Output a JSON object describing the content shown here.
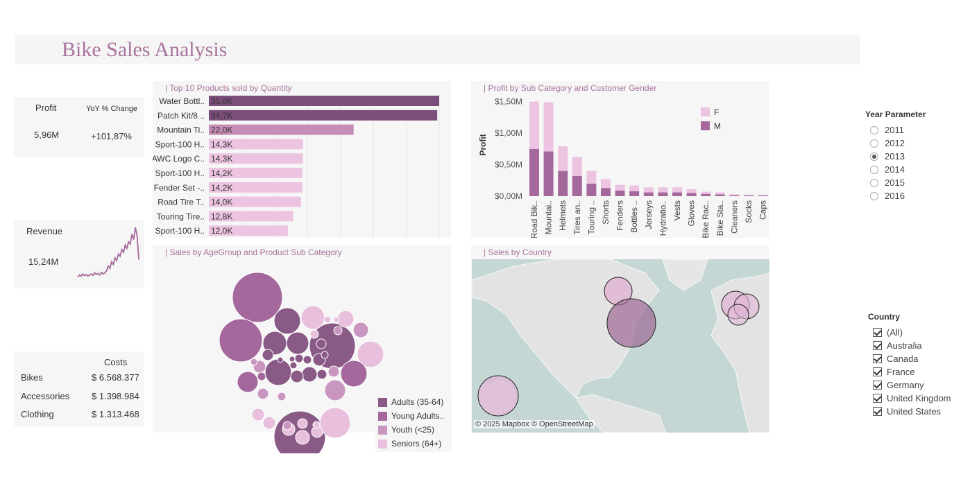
{
  "header": {
    "title": "Bike Sales Analysis"
  },
  "kpis": {
    "profit_label": "Profit",
    "profit_value": "5,96M",
    "yoy_label": "YoY % Change",
    "yoy_value": "+101,87%",
    "revenue_label": "Revenue",
    "revenue_value": "15,24M",
    "revenue_sparkline": [
      0.1,
      0.14,
      0.12,
      0.16,
      0.13,
      0.15,
      0.12,
      0.14,
      0.16,
      0.13,
      0.18,
      0.15,
      0.17,
      0.14,
      0.19,
      0.16,
      0.18,
      0.22,
      0.3,
      0.26,
      0.38,
      0.33,
      0.45,
      0.4,
      0.52,
      0.48,
      0.6,
      0.55,
      0.68,
      0.62,
      0.74,
      0.7,
      0.88,
      0.78,
      1.0,
      0.85,
      0.42
    ]
  },
  "costs": {
    "header": "Costs",
    "rows": [
      {
        "label": "Bikes",
        "value": "$ 6.568.377"
      },
      {
        "label": "Accessories",
        "value": "$ 1.398.984"
      },
      {
        "label": "Clothing",
        "value": "$ 1.313.468"
      }
    ]
  },
  "chart_data": [
    {
      "type": "bar",
      "title": "| Top 10 Products sold by Quantity",
      "categories": [
        "Water Bottl..",
        "Patch Kit/8 ..",
        "Mountain Ti..",
        "Sport-100 H..",
        "AWC Logo C..",
        "Sport-100 H..",
        "Fender Set -..",
        "Road Tire T..",
        "Touring Tire..",
        "Sport-100 H.."
      ],
      "values": [
        35.0,
        34.7,
        22.0,
        14.3,
        14.3,
        14.2,
        14.2,
        14.0,
        12.8,
        12.0
      ],
      "value_labels": [
        "35,0K",
        "34,7K",
        "22,0K",
        "14,3K",
        "14,3K",
        "14,2K",
        "14,2K",
        "14,0K",
        "12,8K",
        "12,0K"
      ],
      "xlim": [
        0,
        35
      ],
      "colors": [
        "#7b4d7b",
        "#7b4d7b",
        "#c68bb6",
        "#ecc3e0",
        "#ecc3e0",
        "#ecc3e0",
        "#ecc3e0",
        "#ecc3e0",
        "#ecc3e0",
        "#ecc3e0"
      ]
    },
    {
      "type": "bar",
      "title": "| Profit by Sub Category and Customer Gender",
      "ylabel": "Profit",
      "categories": [
        "Road Bik..",
        "Mountai..",
        "Helmets",
        "Tires an..",
        "Touring ..",
        "Shorts",
        "Fenders",
        "Bottles ..",
        "Jerseys",
        "Hydratio..",
        "Vests",
        "Gloves",
        "Bike Rac..",
        "Bike Sta..",
        "Cleaners",
        "Socks",
        "Caps"
      ],
      "series": [
        {
          "name": "M",
          "color": "#a4689c",
          "values": [
            0.75,
            0.71,
            0.4,
            0.32,
            0.2,
            0.13,
            0.09,
            0.08,
            0.06,
            0.06,
            0.06,
            0.05,
            0.035,
            0.03,
            0.015,
            0.012,
            0.012
          ]
        },
        {
          "name": "F",
          "color": "#ecc3e0",
          "values": [
            0.75,
            0.78,
            0.39,
            0.3,
            0.2,
            0.14,
            0.09,
            0.09,
            0.08,
            0.08,
            0.08,
            0.06,
            0.035,
            0.03,
            0.015,
            0.012,
            0.012
          ]
        }
      ],
      "yticks": [
        "$0,00M",
        "$0,50M",
        "$1,00M",
        "$1,50M"
      ],
      "ylim": [
        0,
        1.55
      ],
      "legend": [
        "F",
        "M"
      ],
      "legend_position": "top-right"
    },
    {
      "type": "scatter",
      "title": "| Sales by AgeGroup and Product Sub Category",
      "legend": [
        {
          "name": "Adults (35-64)",
          "color": "#8a5a87"
        },
        {
          "name": "Young Adults..",
          "color": "#a4689c"
        },
        {
          "name": "Youth (<25)",
          "color": "#c896be"
        },
        {
          "name": "Seniors (64+)",
          "color": "#e8bfdc"
        }
      ],
      "legend_position": "bottom-right"
    }
  ],
  "map": {
    "title": "| Sales by Country",
    "attribution": "© 2025 Mapbox © OpenStreetMap"
  },
  "year_parameter": {
    "title": "Year Parameter",
    "options": [
      "2011",
      "2012",
      "2013",
      "2014",
      "2015",
      "2016"
    ],
    "selected": "2013"
  },
  "country_filter": {
    "title": "Country",
    "options": [
      "(All)",
      "Australia",
      "Canada",
      "France",
      "Germany",
      "United Kingdom",
      "United States"
    ]
  }
}
